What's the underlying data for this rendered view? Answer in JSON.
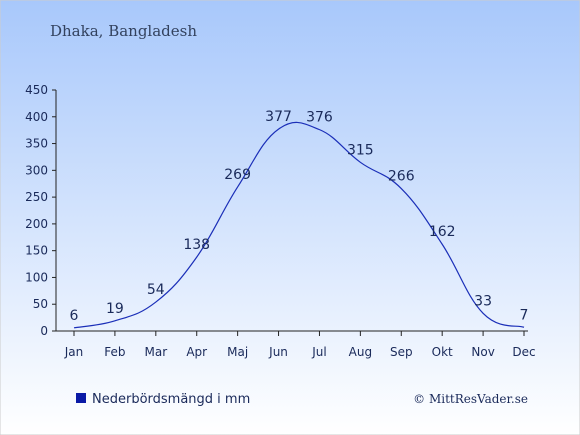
{
  "chart_data": {
    "type": "line",
    "title": "Dhaka, Bangladesh",
    "categories": [
      "Jan",
      "Feb",
      "Mar",
      "Apr",
      "Maj",
      "Jun",
      "Jul",
      "Aug",
      "Sep",
      "Okt",
      "Nov",
      "Dec"
    ],
    "series": [
      {
        "name": "Nederbördsmängd i mm",
        "values": [
          6,
          19,
          54,
          138,
          269,
          377,
          376,
          315,
          266,
          162,
          33,
          7
        ]
      }
    ],
    "ylim": [
      0,
      450
    ],
    "yticks": [
      0,
      50,
      100,
      150,
      200,
      250,
      300,
      350,
      400,
      450
    ],
    "grid": false,
    "legend": "bottom-left"
  },
  "credit": "© MittResVader.se",
  "colors": {
    "line": "#1b2fb8",
    "legend_marker": "#0a1aa6",
    "text": "#1a2a5a",
    "title": "#33425e",
    "bg_top": "#a8c8fb",
    "bg_bottom": "#ffffff"
  }
}
